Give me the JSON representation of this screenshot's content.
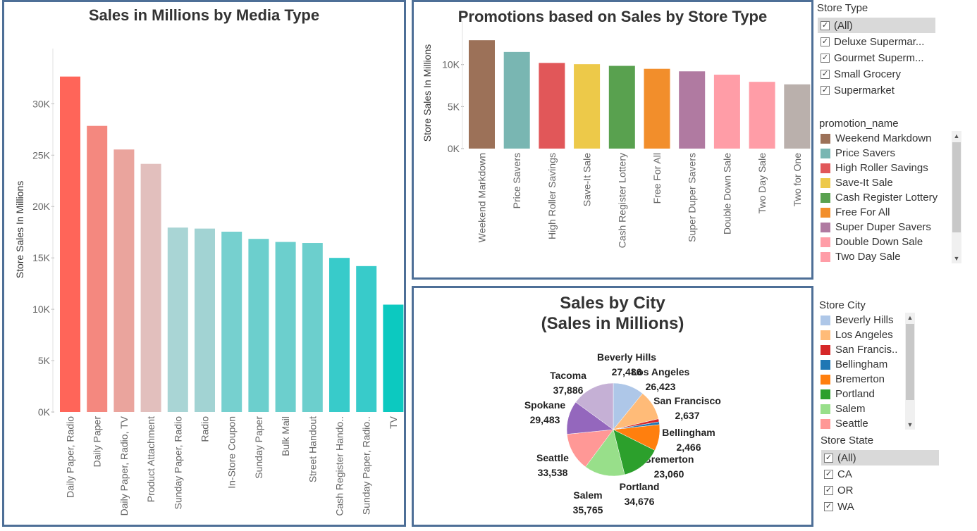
{
  "media_chart": {
    "title": "Sales in Millions by Media Type",
    "ylabel": "Store Sales In Millions",
    "y_ticks": [
      "0K",
      "5K",
      "10K",
      "15K",
      "20K",
      "25K",
      "30K"
    ],
    "chart_data": {
      "type": "bar",
      "title": "Sales in Millions by Media Type",
      "ylabel": "Store Sales In Millions",
      "ylim": [
        0,
        34000
      ],
      "categories": [
        "Daily Paper, Radio",
        "Daily Paper",
        "Daily Paper, Radio, TV",
        "Product Attachment",
        "Sunday Paper, Radio",
        "Radio",
        "In-Store Coupon",
        "Sunday Paper",
        "Bulk Mail",
        "Street Handout",
        "Cash Register Hando..",
        "Sunday Paper, Radio..",
        "TV"
      ],
      "values": [
        32650,
        27850,
        25550,
        24150,
        17950,
        17850,
        17550,
        16850,
        16550,
        16450,
        15000,
        14200,
        10450
      ],
      "colors": [
        "#ff6559",
        "#f4887f",
        "#eaa49d",
        "#e2bfbd",
        "#a9d5d5",
        "#a2d3d3",
        "#76d0cf",
        "#6ccfcd",
        "#6ccfcd",
        "#6ccfcd",
        "#38cbca",
        "#38cbca",
        "#0cc9c0"
      ],
      "legend": "none"
    }
  },
  "promo_chart": {
    "title": "Promotions based on Sales by Store Type",
    "ylabel": "Store Sales In Millions",
    "y_ticks": [
      "0K",
      "5K",
      "10K"
    ],
    "chart_data": {
      "type": "bar",
      "title": "Promotions based on Sales by Store Type",
      "ylabel": "Store Sales In Millions",
      "ylim": [
        0,
        13500
      ],
      "categories": [
        "Weekend Markdown",
        "Price Savers",
        "High Roller Savings",
        "Save-It Sale",
        "Cash Register Lottery",
        "Free For All",
        "Super Duper Savers",
        "Double Down Sale",
        "Two Day Sale",
        "Two for One"
      ],
      "values": [
        12900,
        11500,
        10200,
        10050,
        9850,
        9500,
        9200,
        8800,
        7950,
        7650
      ],
      "colors": [
        "#9c7158",
        "#79b6b2",
        "#e15759",
        "#edc949",
        "#59a14f",
        "#f28e2b",
        "#b07aa1",
        "#ff9da7",
        "#ff9da7",
        "#bab0ac"
      ],
      "legend": "right"
    }
  },
  "city_chart": {
    "title_line1": "Sales by City",
    "title_line2": "(Sales in Millions)",
    "chart_data": {
      "type": "pie",
      "title": "Sales by City (Sales in Millions)",
      "slices": [
        {
          "label": "Beverly Hills",
          "value": 27486,
          "display": "27,486",
          "color": "#aec7e8"
        },
        {
          "label": "Los Angeles",
          "value": 26423,
          "display": "26,423",
          "color": "#ffbb78"
        },
        {
          "label": "San Francisco",
          "value": 2637,
          "display": "2,637",
          "color": "#d62728"
        },
        {
          "label": "Bellingham",
          "value": 2466,
          "display": "2,466",
          "color": "#1f77b4"
        },
        {
          "label": "Bremerton",
          "value": 23060,
          "display": "23,060",
          "color": "#ff7f0e"
        },
        {
          "label": "Portland",
          "value": 34676,
          "display": "34,676",
          "color": "#2ca02c"
        },
        {
          "label": "Salem",
          "value": 35765,
          "display": "35,765",
          "color": "#98df8a"
        },
        {
          "label": "Seattle",
          "value": 33538,
          "display": "33,538",
          "color": "#ff9896"
        },
        {
          "label": "Spokane",
          "value": 29483,
          "display": "29,483",
          "color": "#9467bd"
        },
        {
          "label": "Tacoma",
          "value": 37886,
          "display": "37,886",
          "color": "#c5b0d5"
        }
      ],
      "legend": "right"
    }
  },
  "store_type_filter": {
    "title": "Store Type",
    "items": [
      "(All)",
      "Deluxe Supermar...",
      "Gourmet Superm...",
      "Small Grocery",
      "Supermarket"
    ],
    "check": "✓"
  },
  "promotion_legend": {
    "title": "promotion_name",
    "items": [
      {
        "label": "Weekend Markdown",
        "color": "#9c7158"
      },
      {
        "label": "Price Savers",
        "color": "#79b6b2"
      },
      {
        "label": "High Roller Savings",
        "color": "#e15759"
      },
      {
        "label": "Save-It Sale",
        "color": "#edc949"
      },
      {
        "label": "Cash Register Lottery",
        "color": "#59a14f"
      },
      {
        "label": "Free For All",
        "color": "#f28e2b"
      },
      {
        "label": "Super Duper Savers",
        "color": "#b07aa1"
      },
      {
        "label": "Double Down Sale",
        "color": "#ff9da7"
      },
      {
        "label": "Two Day Sale",
        "color": "#ff9da7"
      }
    ]
  },
  "city_legend": {
    "title": "Store City",
    "items": [
      {
        "label": "Beverly Hills",
        "color": "#aec7e8"
      },
      {
        "label": "Los Angeles",
        "color": "#ffbb78"
      },
      {
        "label": "San Francis..",
        "color": "#d62728"
      },
      {
        "label": "Bellingham",
        "color": "#1f77b4"
      },
      {
        "label": "Bremerton",
        "color": "#ff7f0e"
      },
      {
        "label": "Portland",
        "color": "#2ca02c"
      },
      {
        "label": "Salem",
        "color": "#98df8a"
      },
      {
        "label": "Seattle",
        "color": "#ff9896"
      }
    ]
  },
  "store_state_filter": {
    "title": "Store State",
    "items": [
      "(All)",
      "CA",
      "OR",
      "WA"
    ],
    "check": "✓"
  },
  "scroll": {
    "up": "▲",
    "down": "▼"
  }
}
